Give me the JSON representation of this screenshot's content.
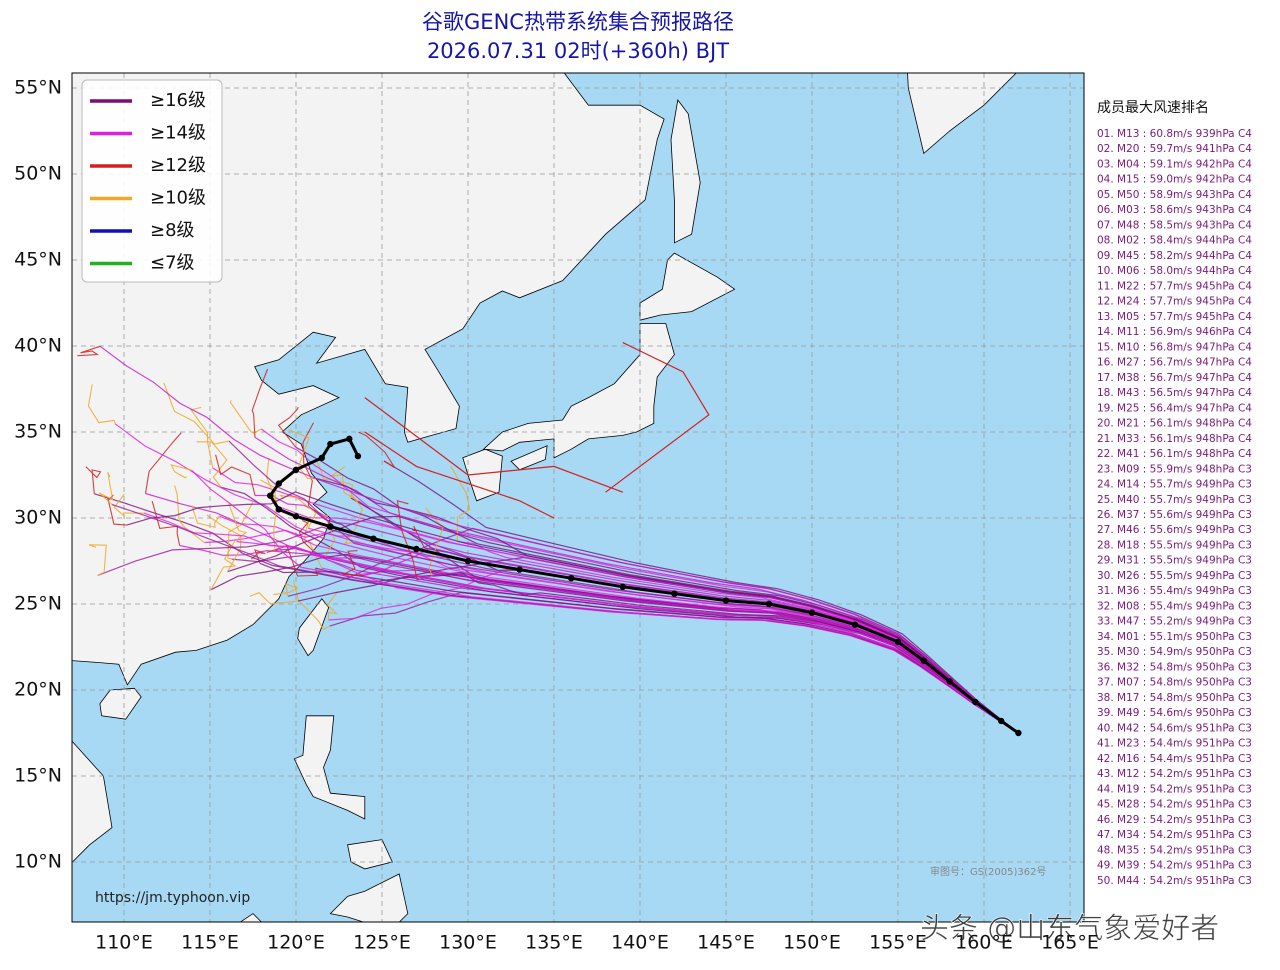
{
  "header": {
    "title": "谷歌GENC热带系统集合预报路径",
    "subtitle": "2026.07.31 02时(+360h) BJT"
  },
  "map": {
    "lat_ticks": [
      {
        "value": 55,
        "label": "55°N"
      },
      {
        "value": 50,
        "label": "50°N"
      },
      {
        "value": 45,
        "label": "45°N"
      },
      {
        "value": 40,
        "label": "40°N"
      },
      {
        "value": 35,
        "label": "35°N"
      },
      {
        "value": 30,
        "label": "30°N"
      },
      {
        "value": 25,
        "label": "25°N"
      },
      {
        "value": 20,
        "label": "20°N"
      },
      {
        "value": 15,
        "label": "15°N"
      },
      {
        "value": 10,
        "label": "10°N"
      }
    ],
    "lon_ticks": [
      {
        "value": 110,
        "label": "110°E"
      },
      {
        "value": 115,
        "label": "115°E"
      },
      {
        "value": 120,
        "label": "120°E"
      },
      {
        "value": 125,
        "label": "125°E"
      },
      {
        "value": 130,
        "label": "130°E"
      },
      {
        "value": 135,
        "label": "135°E"
      },
      {
        "value": 140,
        "label": "140°E"
      },
      {
        "value": 145,
        "label": "145°E"
      },
      {
        "value": 150,
        "label": "150°E"
      },
      {
        "value": 155,
        "label": "155°E"
      },
      {
        "value": 160,
        "label": "160°E"
      },
      {
        "value": 165,
        "label": "165°E"
      }
    ],
    "legend": [
      {
        "label": "≥16级",
        "color": "#7a0f7a"
      },
      {
        "label": "≥14级",
        "color": "#e020e0"
      },
      {
        "label": "≥12级",
        "color": "#d42020"
      },
      {
        "label": "≥10级",
        "color": "#f0a828"
      },
      {
        "label": "≥8级",
        "color": "#1010b8"
      },
      {
        "label": "≤7级",
        "color": "#20b020"
      }
    ],
    "source_url": "https://jm.typhoon.vip",
    "approval": "审图号：GS(2005)362号"
  },
  "ranking": {
    "title": "成员最大风速排名",
    "entries": [
      "01. M13 : 60.8m/s 939hPa C4",
      "02. M20 : 59.7m/s 941hPa C4",
      "03. M04 : 59.1m/s 942hPa C4",
      "04. M15 : 59.0m/s 942hPa C4",
      "05. M50 : 58.9m/s 943hPa C4",
      "06. M03 : 58.6m/s 943hPa C4",
      "07. M48 : 58.5m/s 943hPa C4",
      "08. M02 : 58.4m/s 944hPa C4",
      "09. M45 : 58.2m/s 944hPa C4",
      "10. M06 : 58.0m/s 944hPa C4",
      "11. M22 : 57.7m/s 945hPa C4",
      "12. M24 : 57.7m/s 945hPa C4",
      "13. M05 : 57.7m/s 945hPa C4",
      "14. M11 : 56.9m/s 946hPa C4",
      "15. M10 : 56.8m/s 947hPa C4",
      "16. M27 : 56.7m/s 947hPa C4",
      "17. M38 : 56.7m/s 947hPa C4",
      "18. M43 : 56.5m/s 947hPa C4",
      "19. M25 : 56.4m/s 947hPa C4",
      "20. M21 : 56.1m/s 948hPa C4",
      "21. M33 : 56.1m/s 948hPa C4",
      "22. M41 : 56.1m/s 948hPa C4",
      "23. M09 : 55.9m/s 948hPa C3",
      "24. M14 : 55.7m/s 949hPa C3",
      "25. M40 : 55.7m/s 949hPa C3",
      "26. M37 : 55.6m/s 949hPa C3",
      "27. M46 : 55.6m/s 949hPa C3",
      "28. M18 : 55.5m/s 949hPa C3",
      "29. M31 : 55.5m/s 949hPa C3",
      "30. M26 : 55.5m/s 949hPa C3",
      "31. M36 : 55.4m/s 949hPa C3",
      "32. M08 : 55.4m/s 949hPa C3",
      "33. M47 : 55.2m/s 949hPa C3",
      "34. M01 : 55.1m/s 950hPa C3",
      "35. M30 : 54.9m/s 950hPa C3",
      "36. M32 : 54.8m/s 950hPa C3",
      "37. M07 : 54.8m/s 950hPa C3",
      "38. M17 : 54.8m/s 950hPa C3",
      "39. M49 : 54.6m/s 950hPa C3",
      "40. M42 : 54.6m/s 951hPa C3",
      "41. M23 : 54.4m/s 951hPa C3",
      "42. M16 : 54.4m/s 951hPa C3",
      "43. M12 : 54.2m/s 951hPa C3",
      "44. M19 : 54.2m/s 951hPa C3",
      "45. M28 : 54.2m/s 951hPa C3",
      "46. M29 : 54.2m/s 951hPa C3",
      "47. M34 : 54.2m/s 951hPa C3",
      "48. M35 : 54.2m/s 951hPa C3",
      "49. M39 : 54.2m/s 951hPa C3",
      "50. M44 : 54.2m/s 951hPa C3"
    ]
  },
  "watermark": "头条 @山东气象爱好者"
}
